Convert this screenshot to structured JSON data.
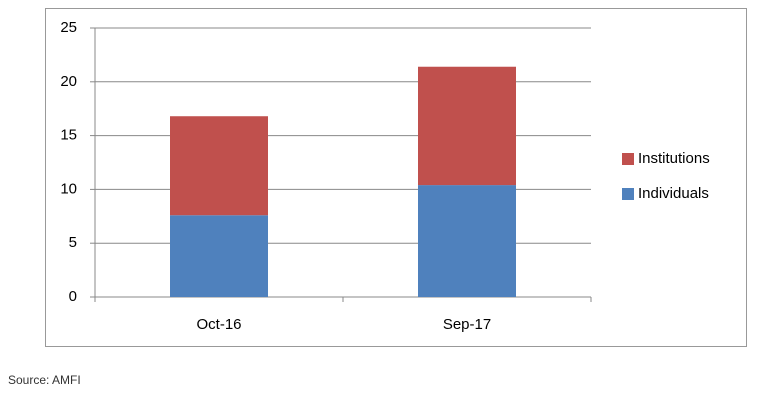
{
  "chart_data": {
    "type": "stacked_bar",
    "categories": [
      "Oct-16",
      "Sep-17"
    ],
    "series": [
      {
        "name": "Individuals",
        "color": "#4f81bd",
        "values": [
          7.6,
          10.4
        ]
      },
      {
        "name": "Institutions",
        "color": "#c0504d",
        "values": [
          9.2,
          11.0
        ]
      }
    ],
    "ylim": [
      0,
      25
    ],
    "yticks": [
      0,
      5,
      10,
      15,
      20,
      25
    ],
    "grid": true,
    "legend": "right",
    "source": "Source: AMFI"
  }
}
